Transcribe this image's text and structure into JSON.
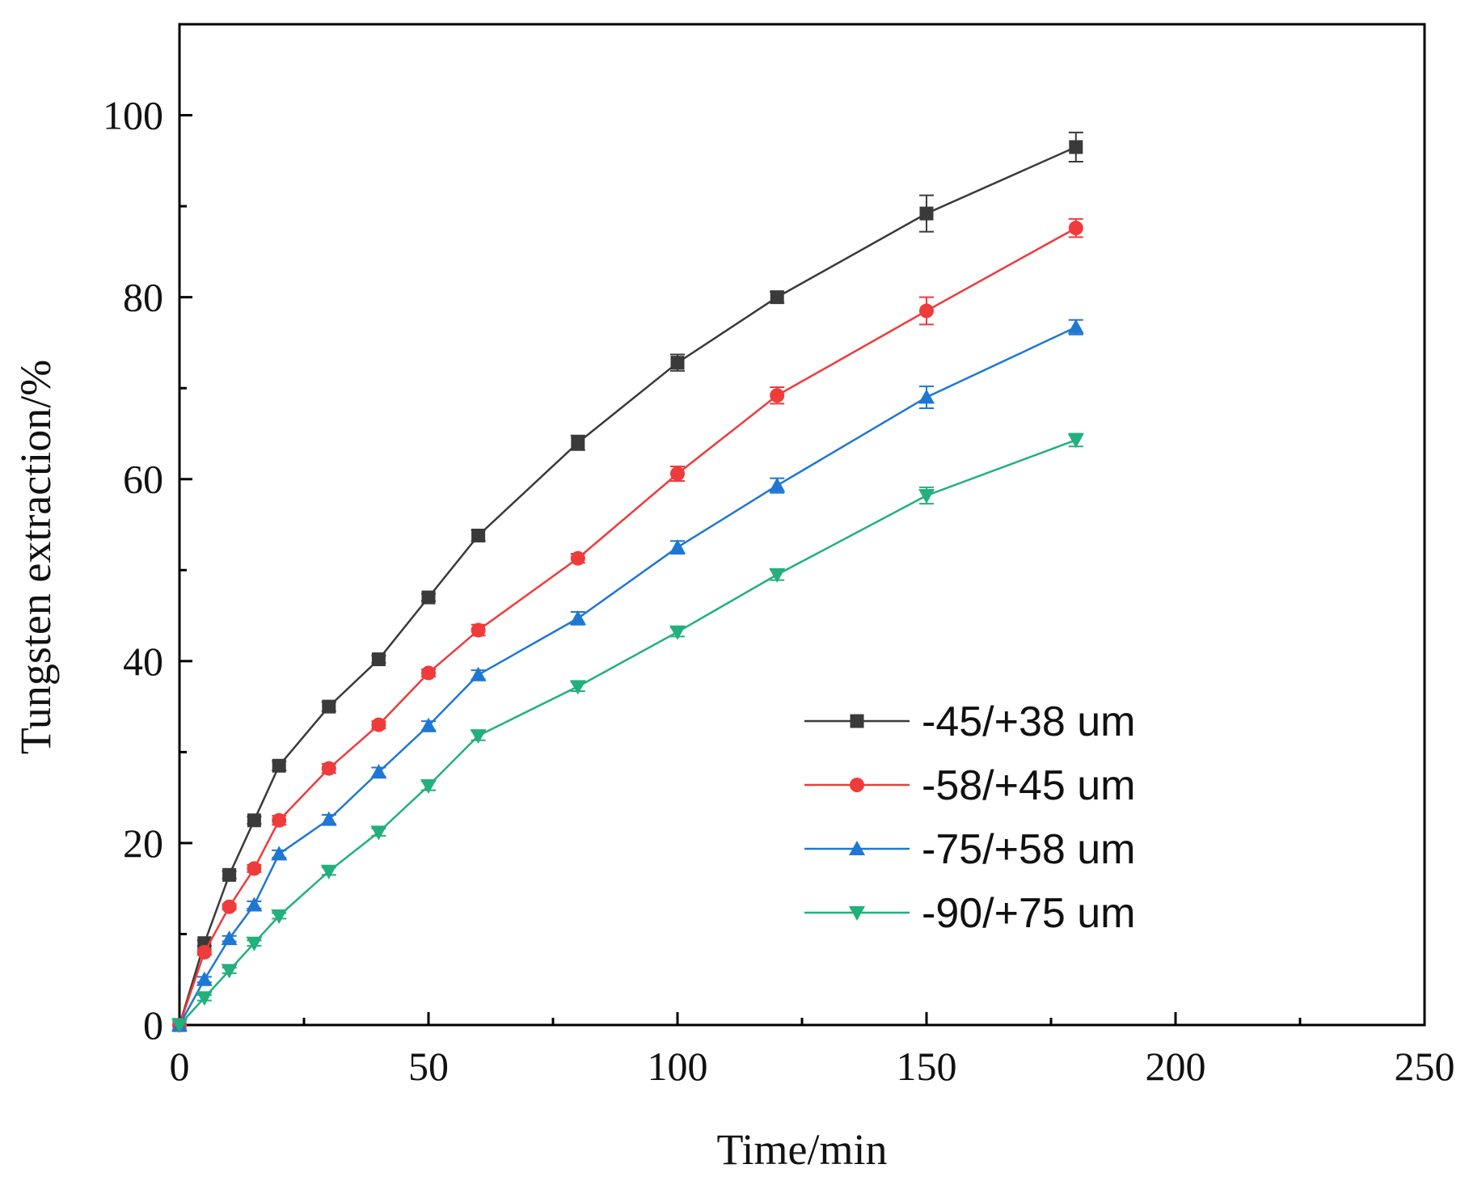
{
  "chart_data": {
    "type": "line",
    "title": "",
    "xlabel": "Time/min",
    "ylabel": "Tungsten extraction/%",
    "xlim": [
      0,
      250
    ],
    "ylim": [
      0,
      110
    ],
    "xticks": [
      0,
      50,
      100,
      150,
      200,
      250
    ],
    "xtick_labels": [
      "0",
      "50",
      "100",
      "150",
      "200",
      "250"
    ],
    "yticks": [
      0,
      20,
      40,
      60,
      80,
      100
    ],
    "ytick_labels": [
      "0",
      "20",
      "40",
      "60",
      "80",
      "100"
    ],
    "grid": false,
    "legend_position": "bottom-right",
    "x": [
      0,
      5,
      10,
      15,
      20,
      30,
      40,
      50,
      60,
      80,
      100,
      120,
      150,
      180
    ],
    "series": [
      {
        "name": "-45/+38 um",
        "color": "#3a3a3a",
        "marker": "square",
        "values": [
          0,
          9,
          16.5,
          22.5,
          28.5,
          35,
          40.2,
          47,
          53.8,
          64,
          72.8,
          80,
          89.2,
          96.5
        ],
        "errors": [
          0,
          0.3,
          0.4,
          0.4,
          0.5,
          0.5,
          0.4,
          0.4,
          0.6,
          0.8,
          0.9,
          0.6,
          2.0,
          1.6
        ]
      },
      {
        "name": "-58/+45 um",
        "color": "#ef3b3b",
        "marker": "circle",
        "values": [
          0,
          8,
          13,
          17.2,
          22.5,
          28.2,
          33,
          38.7,
          43.4,
          51.3,
          60.6,
          69.2,
          78.5,
          87.6
        ],
        "errors": [
          0,
          0.3,
          0.3,
          0.4,
          0.5,
          0.5,
          0.4,
          0.4,
          0.6,
          0.5,
          0.8,
          0.9,
          1.5,
          1.0
        ]
      },
      {
        "name": "-75/+58 um",
        "color": "#1f77d4",
        "marker": "triangle-up",
        "values": [
          0,
          5,
          9.5,
          13.2,
          18.8,
          22.6,
          27.8,
          32.9,
          38.5,
          44.7,
          52.5,
          59.3,
          69,
          76.7
        ],
        "errors": [
          0,
          0.3,
          0.3,
          0.4,
          0.4,
          0.5,
          0.5,
          0.5,
          0.5,
          0.7,
          0.7,
          0.8,
          1.2,
          0.8
        ]
      },
      {
        "name": "-90/+75 um",
        "color": "#22b07d",
        "marker": "triangle-down",
        "values": [
          0,
          3,
          6,
          9,
          12,
          16.9,
          21.2,
          26.3,
          31.8,
          37.2,
          43.2,
          49.5,
          58.2,
          64.3
        ],
        "errors": [
          0,
          0.3,
          0.3,
          0.3,
          0.3,
          0.4,
          0.4,
          0.5,
          0.5,
          0.5,
          0.5,
          0.6,
          0.9,
          0.7
        ]
      }
    ]
  }
}
